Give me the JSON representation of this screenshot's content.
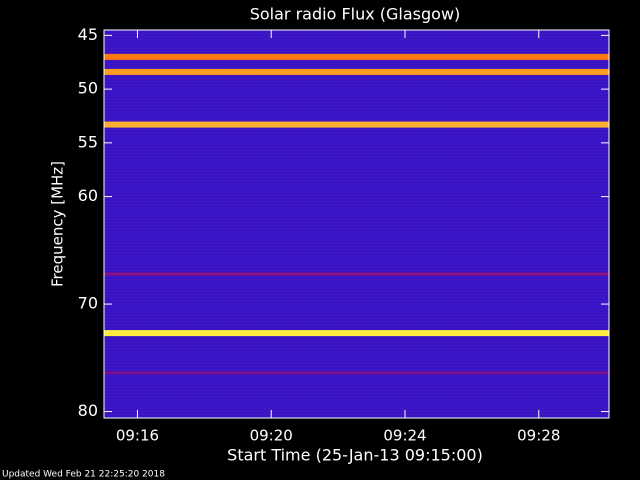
{
  "chart_data": {
    "type": "spectrogram",
    "title": "Solar radio Flux (Glasgow)",
    "y_label": "Frequency [MHz]",
    "x_label": "Start Time (25-Jan-13 09:15:00)",
    "footer": "Updated Wed Feb 21 22:25:20 2018",
    "background_color": "#3a14c4",
    "ylim": [
      44.5,
      80.6
    ],
    "y_inverted": true,
    "yticks": [
      45,
      50,
      55,
      60,
      70,
      80
    ],
    "xlim": [
      0,
      15.1
    ],
    "xticks": [
      {
        "value": 1,
        "label": "09:16"
      },
      {
        "value": 5,
        "label": "09:20"
      },
      {
        "value": 9,
        "label": "09:24"
      },
      {
        "value": 13,
        "label": "09:28"
      }
    ],
    "bands": [
      {
        "frequency": 47.0,
        "color": "#ff7a10"
      },
      {
        "frequency": 48.4,
        "color": "#ffa020"
      },
      {
        "frequency": 53.3,
        "color": "#ffb030"
      },
      {
        "frequency": 67.2,
        "color": "#a01070"
      },
      {
        "frequency": 72.7,
        "color": "#ffee40"
      },
      {
        "frequency": 76.4,
        "color": "#8a1080"
      }
    ]
  }
}
